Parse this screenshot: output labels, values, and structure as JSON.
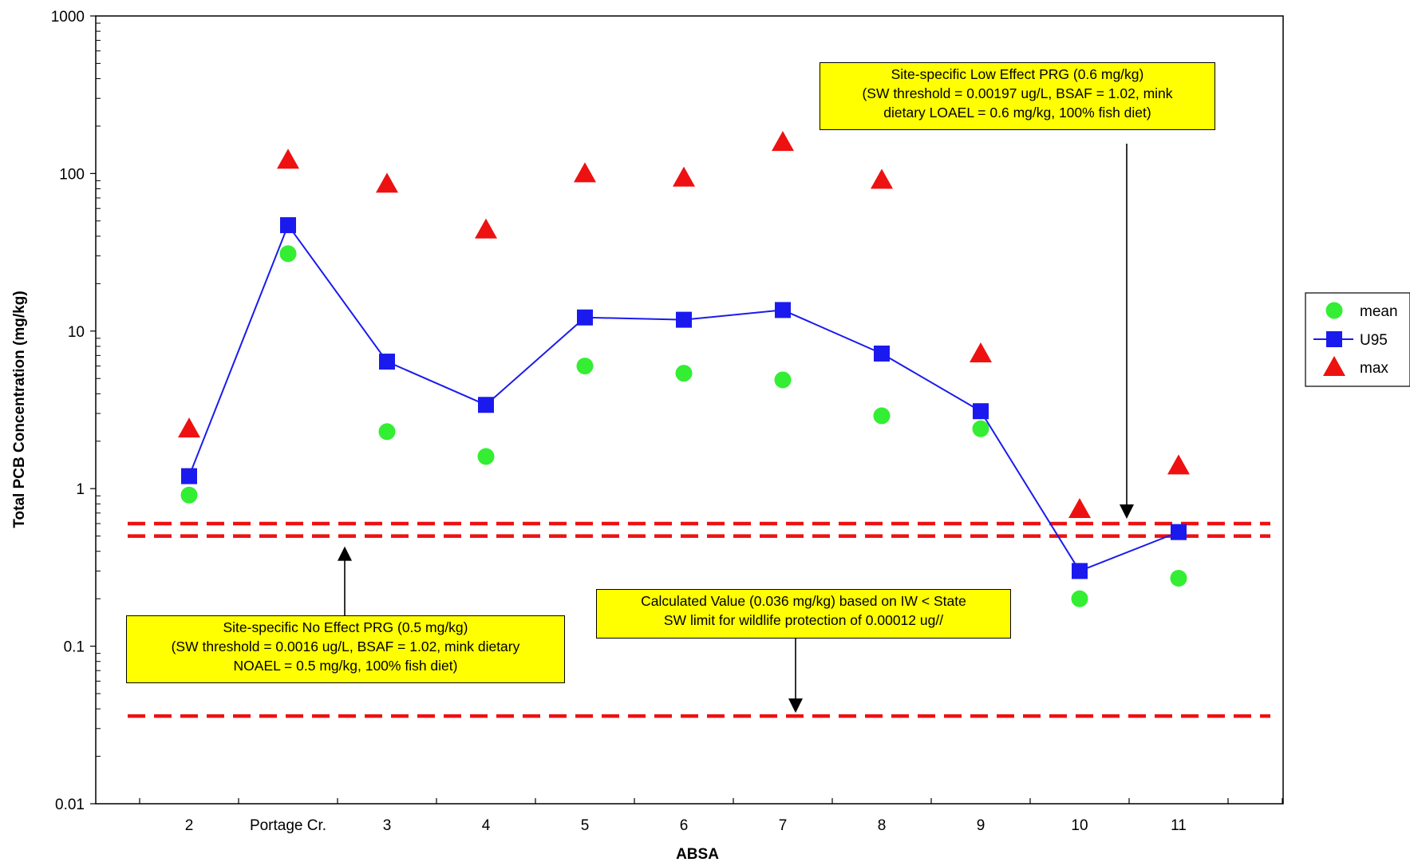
{
  "chart_data": {
    "type": "scatter",
    "yscale": "log",
    "ylim": [
      0.01,
      1000
    ],
    "ylabel": "Total PCB Concentration (mg/kg)",
    "xlabel": "ABSA",
    "grid": false,
    "legend_position": "right",
    "y_ticks": [
      "0.01",
      "0.1",
      "1",
      "10",
      "100",
      "1000"
    ],
    "categories": [
      "2",
      "Portage Cr.",
      "3",
      "4",
      "5",
      "6",
      "7",
      "8",
      "9",
      "10",
      "11"
    ],
    "series": [
      {
        "name": "mean",
        "marker": "circle",
        "color": "#33ee33",
        "line": false,
        "values": [
          0.91,
          31,
          2.3,
          1.6,
          6.0,
          5.4,
          4.9,
          2.9,
          2.4,
          0.2,
          0.27
        ]
      },
      {
        "name": "U95",
        "marker": "square",
        "color": "#1a1aee",
        "line": true,
        "values": [
          1.2,
          47,
          6.4,
          3.4,
          12.2,
          11.8,
          13.6,
          7.2,
          3.1,
          0.3,
          0.53
        ]
      },
      {
        "name": "max",
        "marker": "triangle",
        "color": "#ee1111",
        "line": false,
        "values": [
          2.4,
          122,
          86,
          44,
          100,
          94,
          158,
          91,
          7.2,
          0.74,
          1.4
        ]
      }
    ],
    "reference_lines": [
      {
        "value": 0.6,
        "color": "#ee1111",
        "style": "dashed"
      },
      {
        "value": 0.5,
        "color": "#ee1111",
        "style": "dashed"
      },
      {
        "value": 0.036,
        "color": "#ee1111",
        "style": "dashed"
      }
    ],
    "annotations": [
      {
        "lines": [
          "Site-specific Low Effect PRG (0.6 mg/kg)",
          "(SW threshold = 0.00197 ug/L, BSAF = 1.02, mink",
          "dietary LOAEL = 0.6 mg/kg, 100% fish diet)"
        ],
        "color": "#ffff00",
        "points_to": 0.6
      },
      {
        "lines": [
          "Site-specific No Effect PRG (0.5 mg/kg)",
          "(SW threshold = 0.0016 ug/L, BSAF = 1.02, mink dietary",
          "NOAEL = 0.5 mg/kg, 100% fish diet)"
        ],
        "color": "#ffff00",
        "points_to": 0.5
      },
      {
        "lines": [
          "Calculated Value (0.036 mg/kg) based on IW < State",
          "SW limit for wildlife protection of 0.00012 ug//"
        ],
        "color": "#ffff00",
        "points_to": 0.036
      }
    ]
  }
}
